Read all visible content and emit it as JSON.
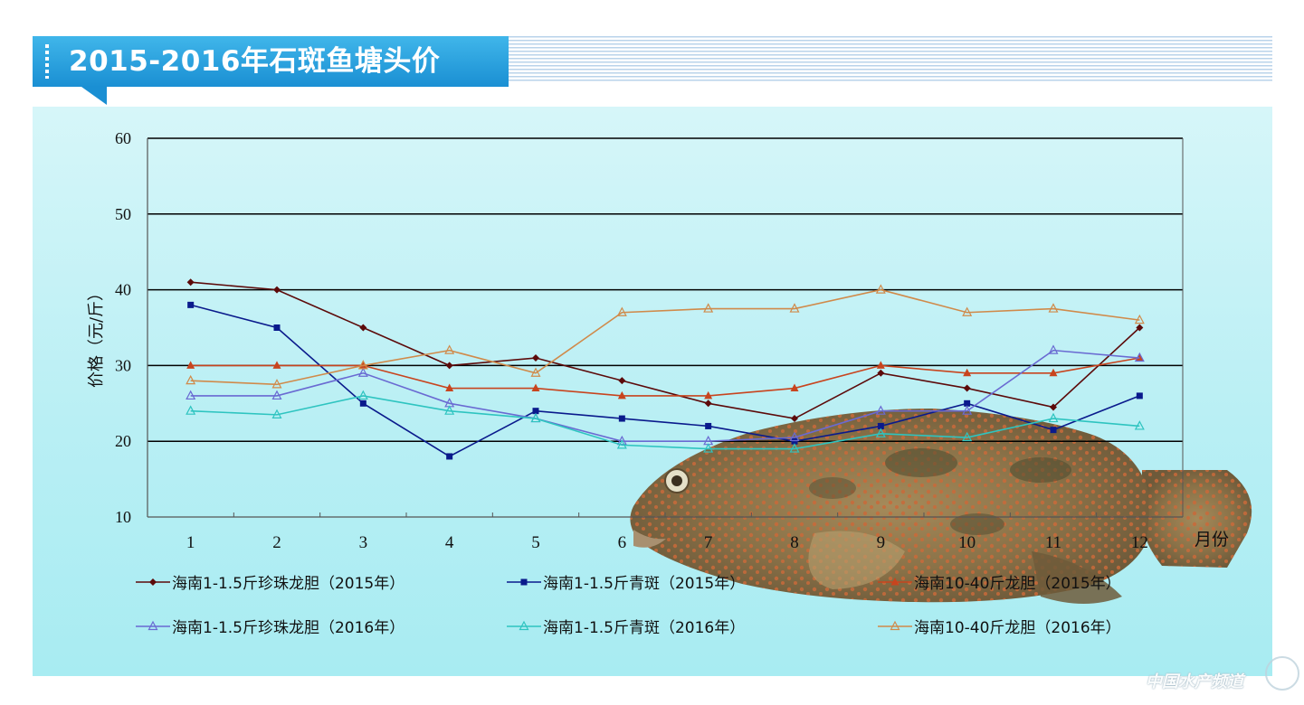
{
  "title": "2015-2016年石斑鱼塘头价",
  "watermark": "中国水产频道",
  "chart_data": {
    "type": "line",
    "categories": [
      "1",
      "2",
      "3",
      "4",
      "5",
      "6",
      "7",
      "8",
      "9",
      "10",
      "11",
      "12"
    ],
    "ylabel": "价格（元/斤）",
    "xlabel": "月份",
    "ylim": [
      10,
      60
    ],
    "yticks": [
      10,
      20,
      30,
      40,
      50,
      60
    ],
    "grid": "horizontal",
    "legend_position": "bottom",
    "series": [
      {
        "name": "海南1-1.5斤珍珠龙胆（2015年）",
        "color": "#5c0a0a",
        "marker": "diamond",
        "values": [
          41,
          40,
          35,
          30,
          31,
          28,
          25,
          23,
          29,
          27,
          24.5,
          35
        ]
      },
      {
        "name": "海南1-1.5斤青斑（2015年）",
        "color": "#0a1a8c",
        "marker": "square",
        "values": [
          38,
          35,
          25,
          18,
          24,
          23,
          22,
          20,
          22,
          25,
          21.5,
          26
        ]
      },
      {
        "name": "海南10-40斤龙胆（2015年）",
        "color": "#c8441e",
        "marker": "triangle",
        "values": [
          30,
          30,
          30,
          27,
          27,
          26,
          26,
          27,
          30,
          29,
          29,
          31
        ]
      },
      {
        "name": "海南1-1.5斤珍珠龙胆（2016年）",
        "color": "#6a6ad2",
        "marker": "triangle-open",
        "values": [
          26,
          26,
          29,
          25,
          23,
          20,
          20,
          20.5,
          24,
          24,
          32,
          31
        ]
      },
      {
        "name": "海南1-1.5斤青斑（2016年）",
        "color": "#2ec4c0",
        "marker": "triangle-open",
        "values": [
          24,
          23.5,
          26,
          24,
          23,
          19.5,
          19,
          19,
          21,
          20.5,
          23,
          22
        ]
      },
      {
        "name": "海南10-40斤龙胆（2016年）",
        "color": "#d08a4a",
        "marker": "triangle-open",
        "values": [
          28,
          27.5,
          30,
          32,
          29,
          37,
          37.5,
          37.5,
          40,
          37,
          37.5,
          36
        ]
      }
    ]
  }
}
